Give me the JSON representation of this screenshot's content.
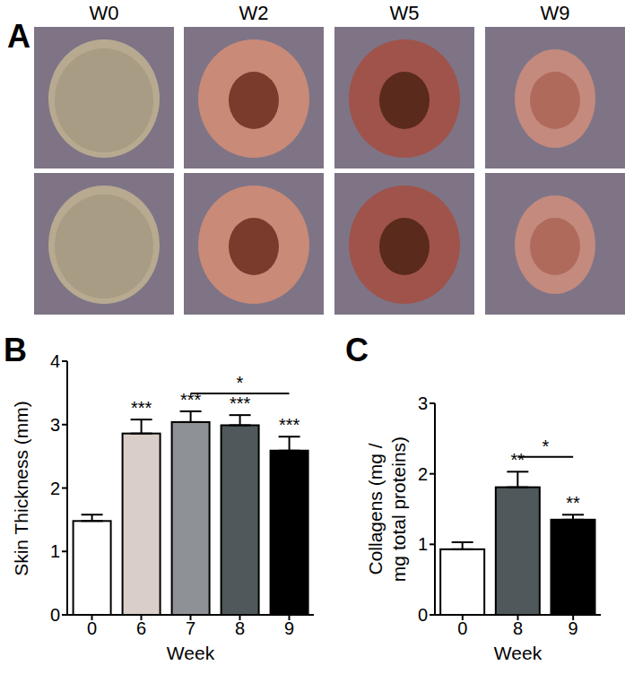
{
  "panel_a": {
    "label": "A",
    "columns": [
      "W0",
      "W2",
      "W5",
      "W9"
    ]
  },
  "chart_data": [
    {
      "type": "bar",
      "panel_label": "B",
      "categories": [
        "0",
        "6",
        "7",
        "8",
        "9"
      ],
      "values": [
        1.48,
        2.86,
        3.04,
        2.99,
        2.59
      ],
      "errors": [
        0.1,
        0.22,
        0.17,
        0.16,
        0.22
      ],
      "colors": [
        "#ffffff",
        "#d9cfc8",
        "#8e9196",
        "#4f585b",
        "#000000"
      ],
      "significance": [
        null,
        "***",
        "***",
        "***",
        "***"
      ],
      "comparisons": [
        {
          "from": "7",
          "to": "9",
          "label": "*"
        }
      ],
      "xlabel": "Week",
      "ylabel": "Skin Thickness (mm)",
      "ylim": [
        0,
        4
      ],
      "yticks": [
        0,
        1,
        2,
        3,
        4
      ]
    },
    {
      "type": "bar",
      "panel_label": "C",
      "categories": [
        "0",
        "8",
        "9"
      ],
      "values": [
        0.93,
        1.81,
        1.35
      ],
      "errors": [
        0.1,
        0.22,
        0.07
      ],
      "colors": [
        "#ffffff",
        "#4f585b",
        "#000000"
      ],
      "significance": [
        null,
        "**",
        "**"
      ],
      "comparisons": [
        {
          "from": "8",
          "to": "9",
          "label": "*"
        }
      ],
      "xlabel": "Week",
      "ylabel": [
        "Collagens (mg /",
        "mg total proteins)"
      ],
      "ylim": [
        0,
        3
      ],
      "yticks": [
        0,
        1,
        2,
        3
      ]
    }
  ]
}
